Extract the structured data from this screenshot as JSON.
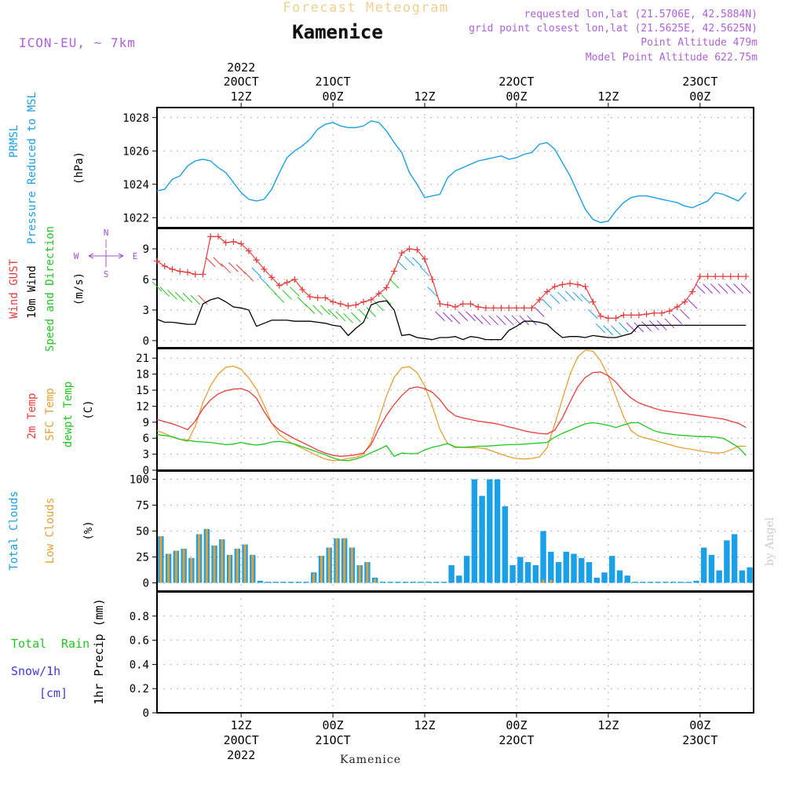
{
  "header": {
    "brand": "Forecast Meteogram",
    "station": "Kamenice",
    "model": "ICON-EU, ~ 7km",
    "requested": "requested lon,lat (21.5706E, 42.5884N)",
    "grid": "grid point closest lon,lat (21.5625E, 42.5625N)",
    "point_alt": "Point Altitude 479m",
    "model_alt": "Model Point Altitude 622.75m",
    "footer_station": "Kamenice",
    "credit": "by Angel"
  },
  "colors": {
    "pressure": "#1aa0e6",
    "gust": "#e83c3c",
    "wind": "#000000",
    "dir": "#1ec81e",
    "compass": "#a050d0",
    "temp2m": "#e83c3c",
    "sfc": "#e6a032",
    "dewpt": "#1ec81e",
    "total_clouds": "#1aa0e6",
    "low_clouds": "#e6a032",
    "rain": "#1ec81e",
    "snow": "#3c3cdc"
  },
  "time_axis": {
    "start_hour": 0,
    "end_hour": 78,
    "ticks": [
      {
        "h": 11,
        "hour": "12Z",
        "date": "20OCT",
        "year": "2022"
      },
      {
        "h": 23,
        "hour": "00Z",
        "date": "21OCT",
        "year": ""
      },
      {
        "h": 35,
        "hour": "12Z",
        "date": "",
        "year": ""
      },
      {
        "h": 47,
        "hour": "00Z",
        "date": "22OCT",
        "year": ""
      },
      {
        "h": 59,
        "hour": "12Z",
        "date": "",
        "year": ""
      },
      {
        "h": 71,
        "hour": "00Z",
        "date": "23OCT",
        "year": ""
      }
    ]
  },
  "chart_data": [
    {
      "type": "line",
      "id": "pressure",
      "labels": [
        "PRMSL",
        "Pressure Reduced to MSL"
      ],
      "ylabel": "(hPa)",
      "ylim": [
        1021.4,
        1028.6
      ],
      "yticks": [
        1022,
        1024,
        1026,
        1028
      ],
      "x": [
        0,
        1,
        2,
        3,
        4,
        5,
        6,
        7,
        8,
        9,
        10,
        11,
        12,
        13,
        14,
        15,
        16,
        17,
        18,
        19,
        20,
        21,
        22,
        23,
        24,
        25,
        26,
        27,
        28,
        29,
        30,
        31,
        32,
        33,
        34,
        35,
        36,
        37,
        38,
        39,
        40,
        41,
        42,
        43,
        44,
        45,
        46,
        47,
        48,
        49,
        50,
        51,
        52,
        53,
        54,
        55,
        56,
        57,
        58,
        59,
        60,
        61,
        62,
        63,
        64,
        65,
        66,
        67,
        68,
        69,
        70,
        71,
        72,
        73,
        74,
        75,
        76,
        77
      ],
      "values": [
        1023.6,
        1023.7,
        1024.3,
        1024.5,
        1025.1,
        1025.4,
        1025.5,
        1025.4,
        1025.0,
        1024.7,
        1024.1,
        1023.5,
        1023.1,
        1023.0,
        1023.1,
        1023.7,
        1024.7,
        1025.6,
        1026.0,
        1026.3,
        1026.7,
        1027.3,
        1027.6,
        1027.7,
        1027.5,
        1027.4,
        1027.4,
        1027.5,
        1027.8,
        1027.7,
        1027.2,
        1026.5,
        1025.9,
        1024.7,
        1024.0,
        1023.2,
        1023.3,
        1023.4,
        1024.4,
        1024.8,
        1025.0,
        1025.2,
        1025.4,
        1025.5,
        1025.6,
        1025.7,
        1025.5,
        1025.6,
        1025.8,
        1025.9,
        1026.4,
        1026.5,
        1026.1,
        1025.3,
        1024.5,
        1023.5,
        1022.5,
        1021.9,
        1021.7,
        1021.8,
        1022.4,
        1022.9,
        1023.2,
        1023.3,
        1023.3,
        1023.2,
        1023.1,
        1023.0,
        1022.9,
        1022.7,
        1022.6,
        1022.8,
        1023.0,
        1023.5,
        1023.4,
        1023.2,
        1023.0,
        1023.5
      ]
    },
    {
      "type": "line",
      "id": "wind",
      "labels": [
        "Wind GUST",
        "10m Wind",
        "Speed and Direction"
      ],
      "ylabel": "(m/s)",
      "compass": {
        "n": "N",
        "s": "S",
        "w": "W",
        "e": "E",
        "tick": "|"
      },
      "ylim": [
        -0.7,
        11.0
      ],
      "yticks": [
        0,
        3,
        6,
        9
      ],
      "x": [
        0,
        1,
        2,
        3,
        4,
        5,
        6,
        7,
        8,
        9,
        10,
        11,
        12,
        13,
        14,
        15,
        16,
        17,
        18,
        19,
        20,
        21,
        22,
        23,
        24,
        25,
        26,
        27,
        28,
        29,
        30,
        31,
        32,
        33,
        34,
        35,
        36,
        37,
        38,
        39,
        40,
        41,
        42,
        43,
        44,
        45,
        46,
        47,
        48,
        49,
        50,
        51,
        52,
        53,
        54,
        55,
        56,
        57,
        58,
        59,
        60,
        61,
        62,
        63,
        64,
        65,
        66,
        67,
        68,
        69,
        70,
        71,
        72,
        73,
        74,
        75,
        76,
        77
      ],
      "gust": [
        7.8,
        7.3,
        7.0,
        6.8,
        6.7,
        6.5,
        6.5,
        10.2,
        10.2,
        9.6,
        9.7,
        9.5,
        8.8,
        7.9,
        7.0,
        6.2,
        5.4,
        5.7,
        6.0,
        5.0,
        4.3,
        4.2,
        4.2,
        3.8,
        3.6,
        3.4,
        3.5,
        3.8,
        4.0,
        4.6,
        5.2,
        6.8,
        8.6,
        9.0,
        8.9,
        8.0,
        6.0,
        3.6,
        3.5,
        3.3,
        3.6,
        3.6,
        3.3,
        3.2,
        3.2,
        3.2,
        3.2,
        3.2,
        3.2,
        3.2,
        4.0,
        4.8,
        5.3,
        5.5,
        5.6,
        5.5,
        5.3,
        3.8,
        2.4,
        2.2,
        2.2,
        2.5,
        2.5,
        2.5,
        2.6,
        2.7,
        2.7,
        2.9,
        3.3,
        3.8,
        4.8,
        6.3,
        6.3,
        6.3,
        6.3,
        6.3,
        6.3,
        6.3
      ],
      "speed": [
        2.1,
        1.8,
        1.8,
        1.7,
        1.6,
        1.6,
        3.6,
        4.0,
        4.2,
        3.8,
        3.3,
        3.2,
        3.0,
        1.4,
        1.7,
        2.0,
        2.0,
        2.0,
        1.9,
        1.9,
        1.9,
        1.8,
        1.7,
        1.5,
        1.4,
        0.5,
        1.2,
        1.8,
        3.5,
        3.8,
        3.9,
        3.0,
        0.5,
        0.6,
        0.3,
        0.2,
        0.1,
        0.3,
        0.3,
        0.4,
        0.1,
        0.4,
        0.3,
        0.1,
        0.1,
        0.1,
        1.0,
        1.4,
        1.9,
        1.9,
        1.8,
        1.6,
        0.9,
        0.3,
        0.4,
        0.4,
        0.3,
        0.5,
        0.4,
        0.3,
        0.3,
        0.5,
        0.7,
        1.5,
        1.5,
        1.5,
        1.5,
        1.5,
        1.5,
        1.5,
        1.5,
        1.5,
        1.5,
        1.5,
        1.5,
        1.5,
        1.5,
        1.5
      ]
    },
    {
      "type": "line",
      "id": "temperature",
      "labels": [
        "2m Temp",
        "SFC Temp",
        "dewpt Temp"
      ],
      "ylabel": "(C)",
      "ylim": [
        0,
        22.8
      ],
      "yticks": [
        0,
        3,
        6,
        9,
        12,
        15,
        18,
        21
      ],
      "x": [
        0,
        1,
        2,
        3,
        4,
        5,
        6,
        7,
        8,
        9,
        10,
        11,
        12,
        13,
        14,
        15,
        16,
        17,
        18,
        19,
        20,
        21,
        22,
        23,
        24,
        25,
        26,
        27,
        28,
        29,
        30,
        31,
        32,
        33,
        34,
        35,
        36,
        37,
        38,
        39,
        40,
        41,
        42,
        43,
        44,
        45,
        46,
        47,
        48,
        49,
        50,
        51,
        52,
        53,
        54,
        55,
        56,
        57,
        58,
        59,
        60,
        61,
        62,
        63,
        64,
        65,
        66,
        67,
        68,
        69,
        70,
        71,
        72,
        73,
        74,
        75,
        76,
        77
      ],
      "t2m": [
        9.5,
        9.1,
        8.7,
        8.2,
        7.6,
        9.2,
        11.5,
        13.2,
        14.3,
        14.9,
        15.2,
        15.3,
        14.8,
        13.5,
        11.0,
        8.8,
        7.5,
        6.7,
        5.9,
        5.2,
        4.5,
        3.8,
        3.2,
        2.8,
        2.6,
        2.7,
        2.9,
        3.2,
        4.8,
        7.8,
        10.3,
        12.3,
        14.0,
        15.3,
        15.6,
        15.3,
        14.6,
        13.2,
        11.3,
        10.2,
        9.8,
        9.5,
        9.2,
        9.0,
        8.8,
        8.5,
        8.1,
        7.8,
        7.4,
        7.1,
        6.9,
        6.8,
        7.5,
        9.8,
        12.8,
        15.6,
        17.4,
        18.3,
        18.4,
        17.7,
        16.5,
        14.8,
        13.5,
        12.6,
        12.1,
        11.6,
        11.2,
        11.0,
        10.8,
        10.6,
        10.4,
        10.2,
        10.0,
        9.8,
        9.6,
        9.2,
        8.8,
        8.0
      ],
      "sfc": [
        7.4,
        6.9,
        6.2,
        5.8,
        5.4,
        8.2,
        12.7,
        15.8,
        18.0,
        19.3,
        19.5,
        18.9,
        17.3,
        15.2,
        12.2,
        8.8,
        6.7,
        5.6,
        4.8,
        4.1,
        3.4,
        2.7,
        2.1,
        1.8,
        1.9,
        2.2,
        2.4,
        3.0,
        5.3,
        9.5,
        13.9,
        17.4,
        19.2,
        19.4,
        18.3,
        15.8,
        12.0,
        7.6,
        5.0,
        4.4,
        4.3,
        4.2,
        4.2,
        4.0,
        3.5,
        3.0,
        2.5,
        2.2,
        2.1,
        2.2,
        2.5,
        4.2,
        8.6,
        13.3,
        18.0,
        21.2,
        22.5,
        22.3,
        20.5,
        17.6,
        13.8,
        10.0,
        7.4,
        6.4,
        6.0,
        5.6,
        5.2,
        4.8,
        4.4,
        4.1,
        3.9,
        3.6,
        3.4,
        3.2,
        3.3,
        3.8,
        4.5,
        4.5
      ],
      "dewpt": [
        6.7,
        6.5,
        6.3,
        5.8,
        5.6,
        5.4,
        5.3,
        5.2,
        5.0,
        4.8,
        4.9,
        5.2,
        4.9,
        4.7,
        4.9,
        5.3,
        5.4,
        5.2,
        4.9,
        4.4,
        3.9,
        3.4,
        2.9,
        2.3,
        1.9,
        1.8,
        2.1,
        2.6,
        3.3,
        3.9,
        4.6,
        2.6,
        3.2,
        3.1,
        3.1,
        3.8,
        4.3,
        4.6,
        5.0,
        4.3,
        4.3,
        4.4,
        4.5,
        4.5,
        4.6,
        4.7,
        4.8,
        4.8,
        4.9,
        5.0,
        5.1,
        5.2,
        6.2,
        6.9,
        7.5,
        8.1,
        8.7,
        8.9,
        8.7,
        8.4,
        8.0,
        8.5,
        8.9,
        8.9,
        8.1,
        7.4,
        7.0,
        6.8,
        6.6,
        6.5,
        6.4,
        6.3,
        6.3,
        6.2,
        6.0,
        5.2,
        4.3,
        2.8
      ]
    },
    {
      "type": "bar",
      "id": "clouds",
      "labels": [
        "Total Clouds",
        "Low Clouds"
      ],
      "ylabel": "(%)",
      "ylim": [
        -8,
        108
      ],
      "yticks": [
        0,
        25,
        50,
        75,
        100
      ],
      "x": [
        0,
        1,
        2,
        3,
        4,
        5,
        6,
        7,
        8,
        9,
        10,
        11,
        12,
        13,
        14,
        15,
        16,
        17,
        18,
        19,
        20,
        21,
        22,
        23,
        24,
        25,
        26,
        27,
        28,
        29,
        30,
        31,
        32,
        33,
        34,
        35,
        36,
        37,
        38,
        39,
        40,
        41,
        42,
        43,
        44,
        45,
        46,
        47,
        48,
        49,
        50,
        51,
        52,
        53,
        54,
        55,
        56,
        57,
        58,
        59,
        60,
        61,
        62,
        63,
        64,
        65,
        66,
        67,
        68,
        69,
        70,
        71,
        72,
        73,
        74,
        75,
        76,
        77
      ],
      "total": [
        45,
        28,
        31,
        33,
        24,
        47,
        52,
        36,
        42,
        27,
        33,
        37,
        27,
        2,
        1,
        1,
        1,
        1,
        1,
        1,
        10,
        26,
        34,
        43,
        43,
        34,
        17,
        20,
        5,
        1,
        1,
        1,
        1,
        1,
        1,
        1,
        1,
        1,
        17,
        7,
        26,
        100,
        84,
        100,
        100,
        74,
        17,
        25,
        20,
        17,
        50,
        30,
        20,
        30,
        28,
        24,
        20,
        5,
        10,
        26,
        12,
        7,
        1,
        1,
        1,
        1,
        1,
        1,
        1,
        1,
        2,
        34,
        27,
        12,
        41,
        47,
        12,
        15
      ],
      "low": [
        45,
        28,
        31,
        33,
        24,
        47,
        52,
        36,
        42,
        27,
        33,
        37,
        27,
        1,
        1,
        1,
        1,
        1,
        1,
        1,
        9,
        26,
        34,
        43,
        43,
        34,
        17,
        20,
        4,
        1,
        1,
        1,
        1,
        1,
        1,
        1,
        1,
        1,
        1,
        1,
        1,
        1,
        1,
        1,
        1,
        1,
        1,
        1,
        1,
        1,
        3,
        3,
        1,
        1,
        1,
        1,
        1,
        1,
        1,
        1,
        1,
        1,
        1,
        1,
        1,
        1,
        1,
        1,
        1,
        1,
        1,
        1,
        1,
        1,
        1,
        1,
        1,
        1
      ]
    },
    {
      "type": "line",
      "id": "precip",
      "labels": [
        "Total",
        "Rain",
        "Snow/1h",
        "[cm]"
      ],
      "ylabel": "1hr Precip (mm)",
      "ylim": [
        0,
        1.0
      ],
      "yticks": [
        0,
        0.2,
        0.4,
        0.6,
        0.8
      ],
      "ytick_labels": [
        "0",
        "0.2",
        "0.4",
        "0.6",
        "0.8"
      ],
      "x": [
        0,
        77
      ],
      "values": [
        0,
        0
      ]
    }
  ]
}
